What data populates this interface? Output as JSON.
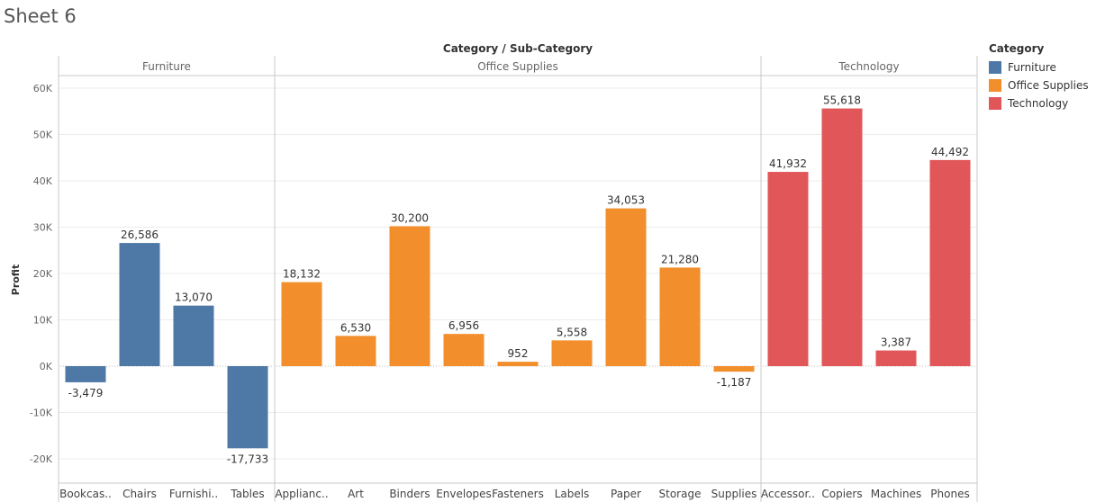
{
  "sheet": {
    "title": "Sheet 6"
  },
  "chart_data": {
    "type": "bar",
    "title": "Category / Sub-Category",
    "ylabel": "Profit",
    "ylim": [
      -22000,
      66000
    ],
    "yticks": [
      -20000,
      -10000,
      0,
      10000,
      20000,
      30000,
      40000,
      50000,
      60000
    ],
    "ytick_labels": [
      "-20K",
      "-10K",
      "0K",
      "10K",
      "20K",
      "30K",
      "40K",
      "50K",
      "60K"
    ],
    "grid": true,
    "legend_position": "right",
    "groups": [
      {
        "name": "Furniture",
        "color": "#4e79a7",
        "categories": [
          "Bookcas..",
          "Chairs",
          "Furnishi..",
          "Tables"
        ],
        "values": [
          -3479,
          26586,
          13070,
          -17733
        ],
        "labels": [
          "-3,479",
          "26,586",
          "13,070",
          "-17,733"
        ]
      },
      {
        "name": "Office Supplies",
        "color": "#f28e2b",
        "categories": [
          "Applianc..",
          "Art",
          "Binders",
          "Envelopes",
          "Fasteners",
          "Labels",
          "Paper",
          "Storage",
          "Supplies"
        ],
        "values": [
          18132,
          6530,
          30200,
          6956,
          952,
          5558,
          34053,
          21280,
          -1187
        ],
        "labels": [
          "18,132",
          "6,530",
          "30,200",
          "6,956",
          "952",
          "5,558",
          "34,053",
          "21,280",
          "-1,187"
        ]
      },
      {
        "name": "Technology",
        "color": "#e15759",
        "categories": [
          "Accessor..",
          "Copiers",
          "Machines",
          "Phones"
        ],
        "values": [
          41932,
          55618,
          3387,
          44492
        ],
        "labels": [
          "41,932",
          "55,618",
          "3,387",
          "44,492"
        ]
      }
    ]
  },
  "legend": {
    "title": "Category",
    "items": [
      {
        "label": "Furniture",
        "color": "#4e79a7"
      },
      {
        "label": "Office Supplies",
        "color": "#f28e2b"
      },
      {
        "label": "Technology",
        "color": "#e15759"
      }
    ]
  }
}
